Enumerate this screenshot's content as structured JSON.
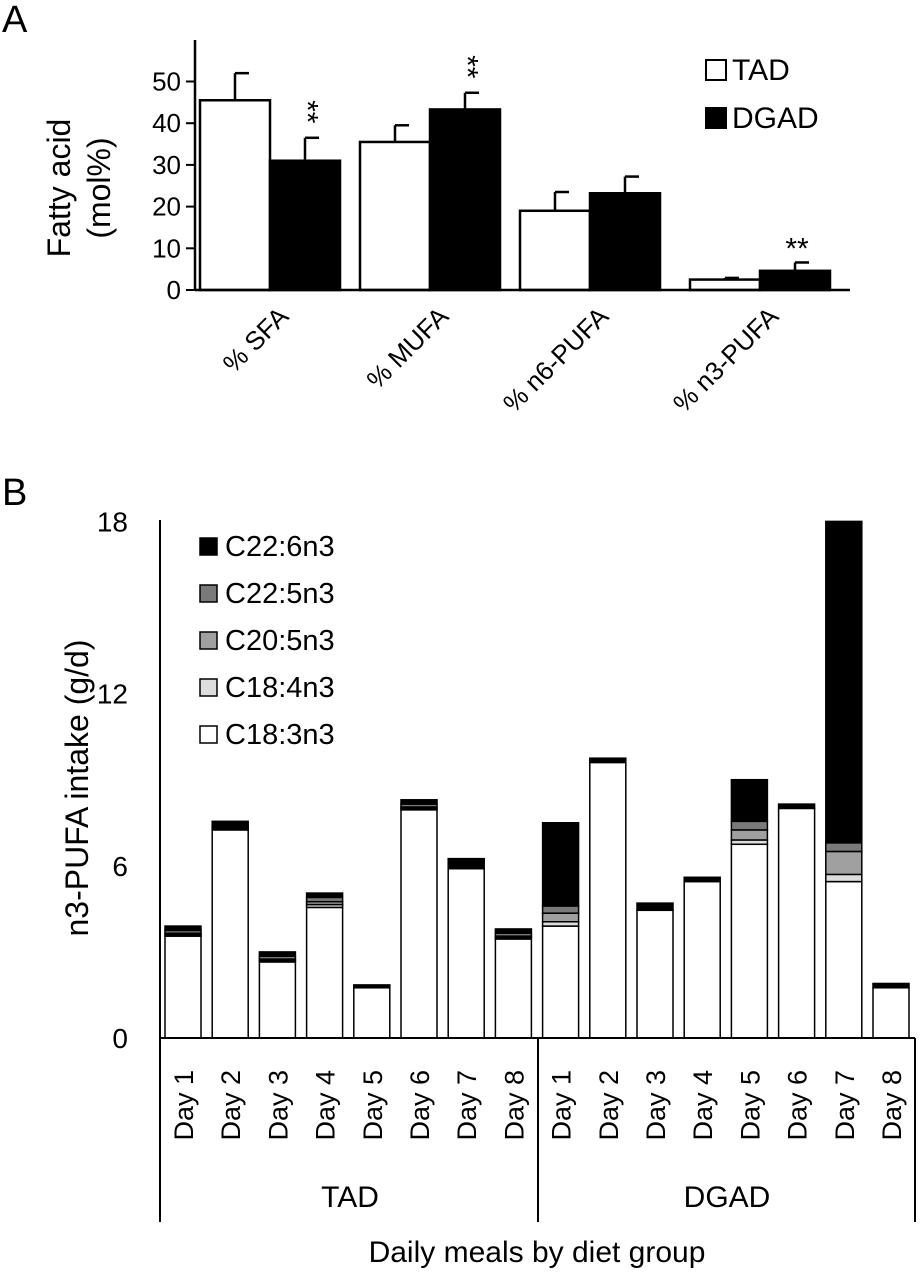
{
  "chart_data": [
    {
      "panel": "A",
      "type": "bar",
      "ylabel_lines": [
        "Fatty acid",
        "(mol%)"
      ],
      "ylim": [
        0,
        60
      ],
      "yticks": [
        0,
        10,
        20,
        30,
        40,
        50
      ],
      "categories": [
        "% SFA",
        "% MUFA",
        "% n6-PUFA",
        "% n3-PUFA"
      ],
      "series": [
        {
          "name": "TAD",
          "color": "#ffffff",
          "values": [
            45.5,
            35.5,
            19,
            2.5
          ],
          "errors": [
            6.5,
            4,
            4.5,
            0.4
          ]
        },
        {
          "name": "DGAD",
          "color": "#000000",
          "values": [
            31,
            43.3,
            23.2,
            4.6
          ],
          "errors": [
            5.5,
            4,
            4,
            2
          ]
        }
      ],
      "significance": [
        {
          "category": "% SFA",
          "series": "DGAD",
          "label": "**"
        },
        {
          "category": "% MUFA",
          "series": "DGAD",
          "label": "**"
        },
        {
          "category": "% n3-PUFA",
          "series": "DGAD",
          "label": "**"
        }
      ],
      "legend": {
        "position": "top-right",
        "items": [
          "TAD",
          "DGAD"
        ]
      }
    },
    {
      "panel": "B",
      "type": "bar",
      "stacked": true,
      "ylabel": "n3-PUFA  intake (g/d)",
      "xlabel": "Daily meals by diet group",
      "ylim": [
        0,
        18
      ],
      "yticks": [
        0,
        6,
        12,
        18
      ],
      "categories": [
        "Day 1",
        "Day 2",
        "Day 3",
        "Day 4",
        "Day 5",
        "Day 6",
        "Day 7",
        "Day 8",
        "Day 1",
        "Day 2",
        "Day 3",
        "Day 4",
        "Day 5",
        "Day 6",
        "Day 7",
        "Day 8"
      ],
      "groups": [
        {
          "name": "TAD",
          "days": 8
        },
        {
          "name": "DGAD",
          "days": 8
        }
      ],
      "series": [
        {
          "name": "C18:3n3",
          "color": "#ffffff",
          "values": [
            3.55,
            7.25,
            2.65,
            4.55,
            1.75,
            7.95,
            5.9,
            3.45,
            3.9,
            9.6,
            4.45,
            5.45,
            6.75,
            8.0,
            5.45,
            1.75
          ]
        },
        {
          "name": "C18:4n3",
          "color": "#dddddd",
          "values": [
            0.05,
            0.05,
            0.05,
            0.1,
            0.0,
            0.05,
            0.0,
            0.05,
            0.15,
            0.0,
            0.0,
            0.0,
            0.15,
            0.0,
            0.25,
            0.0
          ]
        },
        {
          "name": "C20:5n3",
          "color": "#a0a0a0",
          "values": [
            0.05,
            0.05,
            0.05,
            0.1,
            0.0,
            0.05,
            0.0,
            0.05,
            0.3,
            0.0,
            0.0,
            0.0,
            0.35,
            0.0,
            0.8,
            0.0
          ]
        },
        {
          "name": "C22:5n3",
          "color": "#7a7a7a",
          "values": [
            0.1,
            0.05,
            0.1,
            0.15,
            0.0,
            0.1,
            0.0,
            0.1,
            0.25,
            0.0,
            0.0,
            0.0,
            0.3,
            0.0,
            0.3,
            0.0
          ]
        },
        {
          "name": "C22:6n3",
          "color": "#000000",
          "values": [
            0.15,
            0.15,
            0.15,
            0.15,
            0.1,
            0.15,
            0.35,
            0.15,
            2.9,
            0.15,
            0.25,
            0.15,
            1.45,
            0.15,
            11.2,
            0.15
          ]
        }
      ],
      "legend": {
        "position": "top-left",
        "items": [
          "C22:6n3",
          "C22:5n3",
          "C20:5n3",
          "C18:4n3",
          "C18:3n3"
        ]
      }
    }
  ]
}
